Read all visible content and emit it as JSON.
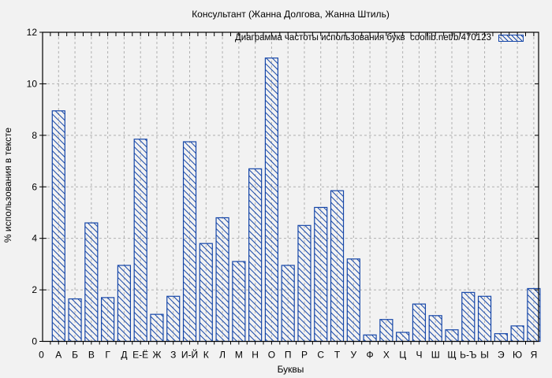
{
  "chart_data": {
    "type": "bar",
    "title": "Консультант (Жанна Долгова, Жанна Штиль)",
    "legend": "Диаграмма частоты использования букв  coollib.net/b/470123",
    "xlabel": "Буквы",
    "ylabel": "% использования в тексте",
    "x_origin_label": "0",
    "categories": [
      "А",
      "Б",
      "В",
      "Г",
      "Д",
      "Е-Ё",
      "Ж",
      "З",
      "И-Й",
      "К",
      "Л",
      "М",
      "Н",
      "О",
      "П",
      "Р",
      "С",
      "Т",
      "У",
      "Ф",
      "Х",
      "Ц",
      "Ч",
      "Ш",
      "Щ",
      "Ь-Ъ",
      "Ы",
      "Э",
      "Ю",
      "Я"
    ],
    "values": [
      8.95,
      1.65,
      4.6,
      1.7,
      2.95,
      7.85,
      1.05,
      1.75,
      7.75,
      3.8,
      4.8,
      3.1,
      6.7,
      11.0,
      2.95,
      4.5,
      5.2,
      5.85,
      3.2,
      0.25,
      0.85,
      0.35,
      1.45,
      1.0,
      0.45,
      1.9,
      1.75,
      0.3,
      0.6,
      2.05
    ],
    "ylim": [
      0,
      12
    ],
    "yticks": [
      0,
      2,
      4,
      6,
      8,
      10,
      12
    ],
    "grid": true,
    "legend_position": "top-right",
    "hatch": "diagonal-backslash",
    "colors": {
      "bar": "#1546a8",
      "grid": "#b0b0b0",
      "frame": "#000000",
      "background": "#f2f2f2",
      "text": "#000000"
    }
  }
}
